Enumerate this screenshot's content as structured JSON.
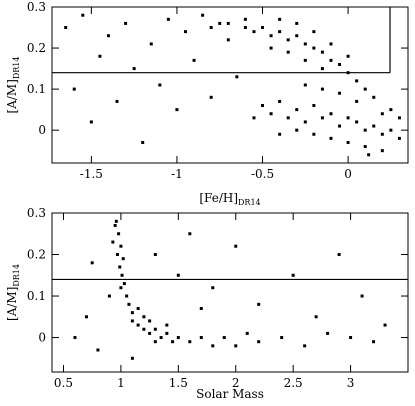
{
  "chart_data": [
    {
      "type": "scatter",
      "color": "#000000",
      "xlabel": {
        "text": "[Fe/H]",
        "sub": "DR14"
      },
      "ylabel": {
        "text": "[A/M]",
        "sub": "DR14"
      },
      "xlim": [
        -1.73,
        0.35
      ],
      "ylim": [
        -0.08,
        0.3
      ],
      "xticks": [
        -1.5,
        -1,
        -0.5,
        0
      ],
      "yticks": [
        0,
        0.1,
        0.2,
        0.3
      ],
      "hline": 0.14,
      "vline": 0.245,
      "x": [
        -1.65,
        -1.6,
        -1.55,
        -1.5,
        -1.45,
        -1.4,
        -1.35,
        -1.3,
        -1.25,
        -1.2,
        -1.15,
        -1.1,
        -1.05,
        -1.0,
        -0.95,
        -0.9,
        -0.85,
        -0.8,
        -0.75,
        -0.7,
        -0.65,
        -0.6,
        -0.55,
        -0.8,
        -0.7,
        -0.6,
        -0.55,
        -0.5,
        -0.45,
        -0.4,
        -0.35,
        -0.3,
        -0.25,
        -0.2,
        -0.15,
        -0.1,
        -0.05,
        0,
        0.05,
        0.1,
        0.15,
        -0.45,
        -0.35,
        -0.25,
        -0.15,
        -0.4,
        -0.3,
        -0.2,
        -0.1,
        0,
        -0.5,
        -0.45,
        -0.4,
        -0.35,
        -0.3,
        -0.25,
        -0.2,
        -0.15,
        -0.1,
        -0.05,
        0,
        0.05,
        0.1,
        0.15,
        0.2,
        0.25,
        0.3,
        -0.3,
        -0.2,
        -0.1,
        0,
        0.1,
        0.2,
        -0.4,
        0.3,
        0.25,
        0.05,
        -0.05,
        -0.15,
        -0.25,
        0.2,
        0.12
      ],
      "y": [
        0.25,
        0.1,
        0.28,
        0.02,
        0.18,
        0.23,
        0.07,
        0.26,
        0.15,
        -0.03,
        0.21,
        0.11,
        0.27,
        0.05,
        0.24,
        0.17,
        0.28,
        0.08,
        0.26,
        0.22,
        0.13,
        0.27,
        0.03,
        0.25,
        0.26,
        0.25,
        0.24,
        0.25,
        0.23,
        0.24,
        0.22,
        0.23,
        0.21,
        0.2,
        0.19,
        0.17,
        0.16,
        0.14,
        0.12,
        0.1,
        0.08,
        0.2,
        0.19,
        0.17,
        0.15,
        0.27,
        0.26,
        0.24,
        0.21,
        0.18,
        0.06,
        0.04,
        0.07,
        0.03,
        0.05,
        0.02,
        0.06,
        0.03,
        0.04,
        0.01,
        0.03,
        0.02,
        0,
        0.01,
        -0.01,
        0,
        -0.02,
        0,
        -0.01,
        -0.02,
        -0.03,
        -0.04,
        -0.05,
        -0.01,
        0.03,
        0.05,
        0.07,
        0.09,
        0.1,
        0.11,
        0.04,
        -0.06
      ]
    },
    {
      "type": "scatter",
      "color": "#000000",
      "xlabel": {
        "text": "Solar Mass"
      },
      "ylabel": {
        "text": "[A/M]",
        "sub": "DR14"
      },
      "xlim": [
        0.4,
        3.5
      ],
      "ylim": [
        -0.083,
        0.3
      ],
      "xticks": [
        0.5,
        1,
        1.5,
        2,
        2.5,
        3
      ],
      "yticks": [
        0,
        0.1,
        0.2,
        0.3
      ],
      "hline": 0.14,
      "x": [
        0.95,
        0.98,
        1.0,
        0.97,
        1.02,
        0.99,
        1.01,
        1.03,
        1.0,
        1.05,
        1.07,
        1.1,
        0.93,
        0.96,
        1.1,
        1.15,
        1.2,
        1.25,
        1.3,
        1.35,
        1.4,
        1.45,
        1.5,
        1.2,
        1.3,
        1.6,
        1.7,
        1.8,
        1.9,
        2.0,
        2.1,
        2.2,
        2.4,
        2.6,
        2.8,
        3.0,
        3.2,
        1.15,
        1.25,
        1.4,
        0.7,
        0.8,
        0.75,
        0.9,
        1.3,
        1.6,
        1.8,
        2.0,
        2.2,
        2.5,
        2.7,
        3.1,
        3.3,
        2.9,
        1.5,
        0.6,
        1.1,
        1.7
      ],
      "y": [
        0.27,
        0.25,
        0.22,
        0.2,
        0.19,
        0.17,
        0.15,
        0.13,
        0.12,
        0.1,
        0.08,
        0.06,
        0.23,
        0.28,
        0.04,
        0.03,
        0.02,
        0.01,
        0.02,
        0.0,
        0.01,
        -0.01,
        0.0,
        0.05,
        -0.01,
        -0.01,
        0.0,
        -0.02,
        0.0,
        -0.02,
        0.01,
        -0.01,
        0.0,
        -0.02,
        0.01,
        0.0,
        -0.01,
        0.07,
        0.04,
        0.03,
        0.05,
        -0.03,
        0.18,
        0.1,
        0.2,
        0.25,
        0.12,
        0.22,
        0.08,
        0.15,
        0.05,
        0.1,
        0.03,
        0.2,
        0.15,
        0.0,
        -0.05,
        0.07
      ]
    }
  ]
}
